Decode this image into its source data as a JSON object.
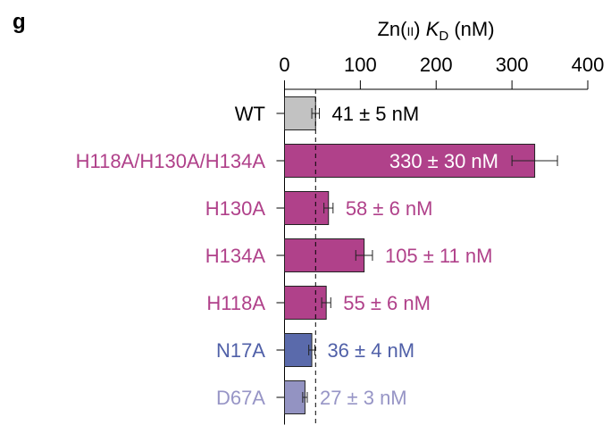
{
  "panel_label": "g",
  "chart_data": {
    "type": "bar",
    "orientation": "horizontal",
    "title": "",
    "xlabel": {
      "prefix": "Zn(",
      "roman": "II",
      "mid": ") ",
      "symbol": "K",
      "subscript": "D",
      "suffix": " (nM)"
    },
    "xlim": [
      0,
      400
    ],
    "xticks": [
      "0",
      "100",
      "200",
      "300",
      "400"
    ],
    "axis_position": "top",
    "grid": false,
    "reference_line": {
      "value": 41,
      "style": "dashed"
    },
    "categories": [
      "WT",
      "H118A/H130A/H134A",
      "H130A",
      "H134A",
      "H118A",
      "N17A",
      "D67A"
    ],
    "values": [
      41,
      330,
      58,
      105,
      55,
      36,
      27
    ],
    "errors": [
      5,
      30,
      6,
      11,
      6,
      4,
      3
    ],
    "data_labels": [
      "41 ± 5 nM",
      "330 ± 30 nM",
      "58 ± 6 nM",
      "105 ± 11 nM",
      "55 ± 6 nM",
      "36 ± 4 nM",
      "27 ± 3 nM"
    ],
    "bar_colors": [
      "#c2c2c2",
      "#b0418a",
      "#b0418a",
      "#b0418a",
      "#b0418a",
      "#5a6aab",
      "#9393c2"
    ],
    "label_colors": [
      "#000000",
      "#b0418a",
      "#b0418a",
      "#b0418a",
      "#b0418a",
      "#5060a8",
      "#9795c6"
    ],
    "data_label_inside": [
      false,
      true,
      false,
      false,
      false,
      false,
      false
    ]
  }
}
